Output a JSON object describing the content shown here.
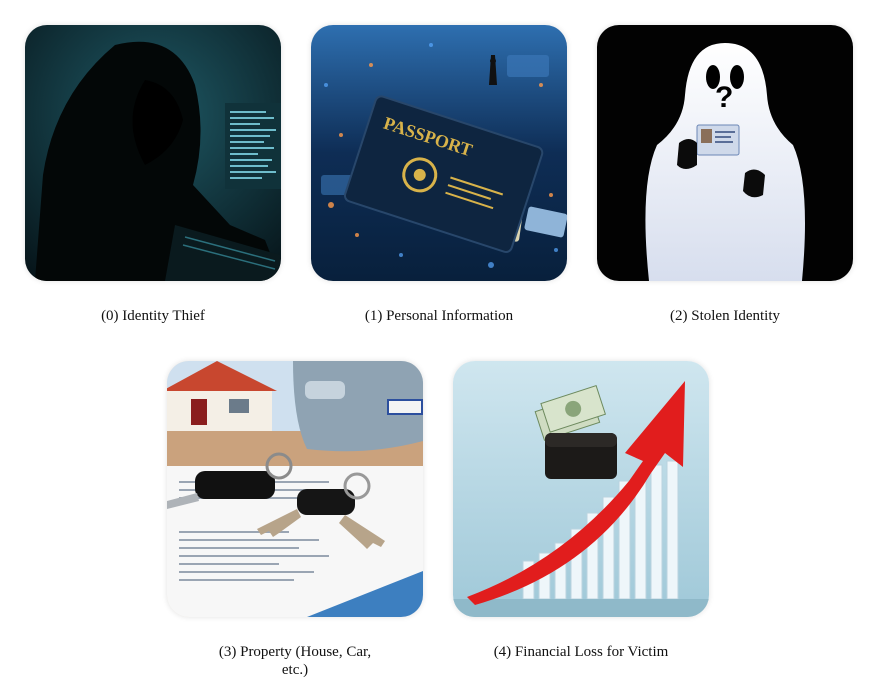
{
  "panels": [
    {
      "label": "(0) Identity Thief",
      "image": "hooded-hacker-at-keyboard"
    },
    {
      "label": "(1) Personal Information",
      "image": "passport-on-circuit-board",
      "image_text": "PASSPORT"
    },
    {
      "label": "(2) Stolen Identity",
      "image": "ghost-holding-id-card"
    },
    {
      "label": "(3) Property (House, Car, etc.)",
      "image": "keys-on-document-with-house-and-car"
    },
    {
      "label": "(4) Financial Loss for Victim",
      "image": "wallet-with-rising-red-arrow-chart"
    }
  ]
}
